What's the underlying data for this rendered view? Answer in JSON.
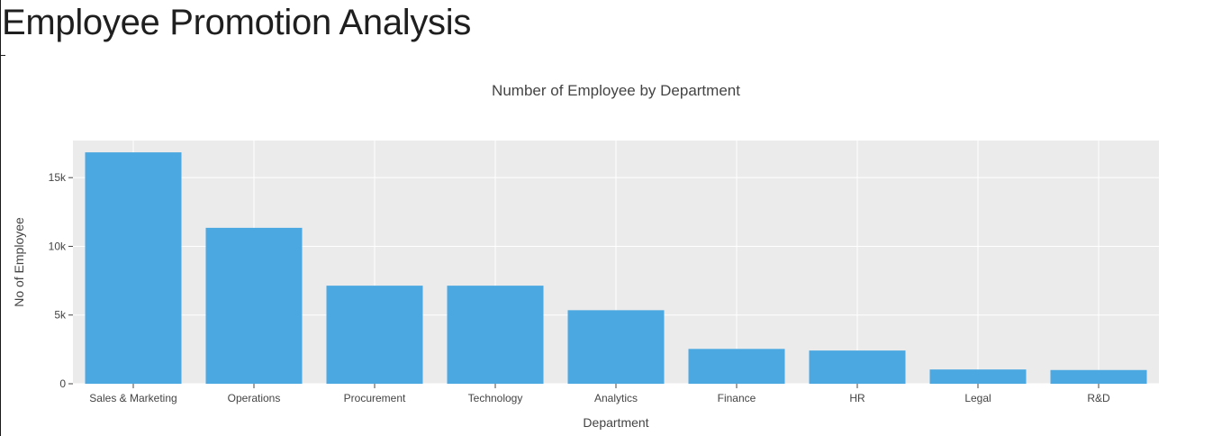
{
  "page": {
    "title": "Employee Promotion Analysis"
  },
  "colors": {
    "bar": "#4ca8e0",
    "plot_background": "#ebebeb",
    "grid": "#ffffff",
    "text": "#444444"
  },
  "chart_data": {
    "type": "bar",
    "title": "Number of Employee by Department",
    "xlabel": "Department",
    "ylabel": "No of Employee",
    "categories": [
      "Sales & Marketing",
      "Operations",
      "Procurement",
      "Technology",
      "Analytics",
      "Finance",
      "HR",
      "Legal",
      "R&D"
    ],
    "values": [
      16840,
      11348,
      7138,
      7138,
      5352,
      2536,
      2418,
      1039,
      999
    ],
    "ylim": [
      0,
      17700
    ],
    "yticks": [
      0,
      5000,
      10000,
      15000
    ],
    "ytick_labels": [
      "0",
      "5k",
      "10k",
      "15k"
    ],
    "grid": true,
    "legend": false
  }
}
